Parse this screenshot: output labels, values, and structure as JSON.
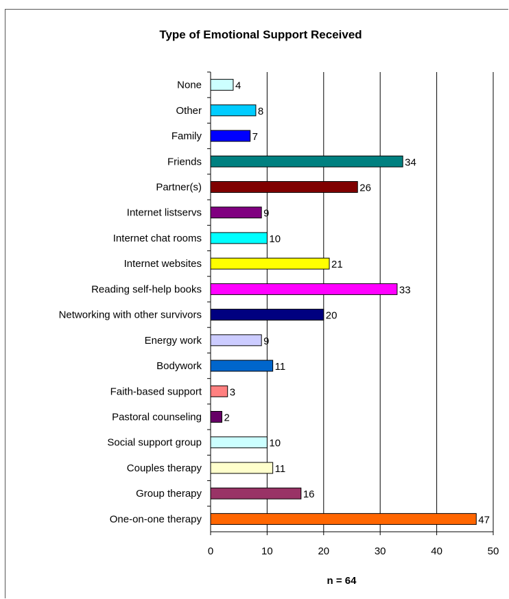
{
  "chart_data": {
    "type": "bar",
    "orientation": "horizontal",
    "title": "Type of Emotional Support Received",
    "xlabel": "n = 64",
    "ylabel": "",
    "xlim": [
      0,
      50
    ],
    "xticks": [
      0,
      10,
      20,
      30,
      40,
      50
    ],
    "grid": "vertical",
    "legend": "none",
    "categories": [
      "None",
      "Other",
      "Family",
      "Friends",
      "Partner(s)",
      "Internet listservs",
      "Internet chat rooms",
      "Internet websites",
      "Reading self-help books",
      "Networking with other survivors",
      "Energy work",
      "Bodywork",
      "Faith-based support",
      "Pastoral counseling",
      "Social support group",
      "Couples therapy",
      "Group therapy",
      "One-on-one therapy"
    ],
    "values": [
      4,
      8,
      7,
      34,
      26,
      9,
      10,
      21,
      33,
      20,
      9,
      11,
      3,
      2,
      10,
      11,
      16,
      47
    ],
    "colors": [
      "#ccffff",
      "#00ccff",
      "#0000ff",
      "#008080",
      "#800000",
      "#800080",
      "#00ffff",
      "#ffff00",
      "#ff00ff",
      "#000080",
      "#ccccff",
      "#0066cc",
      "#ff8080",
      "#660066",
      "#ccffff",
      "#ffffcc",
      "#993366",
      "#ff6600"
    ]
  }
}
